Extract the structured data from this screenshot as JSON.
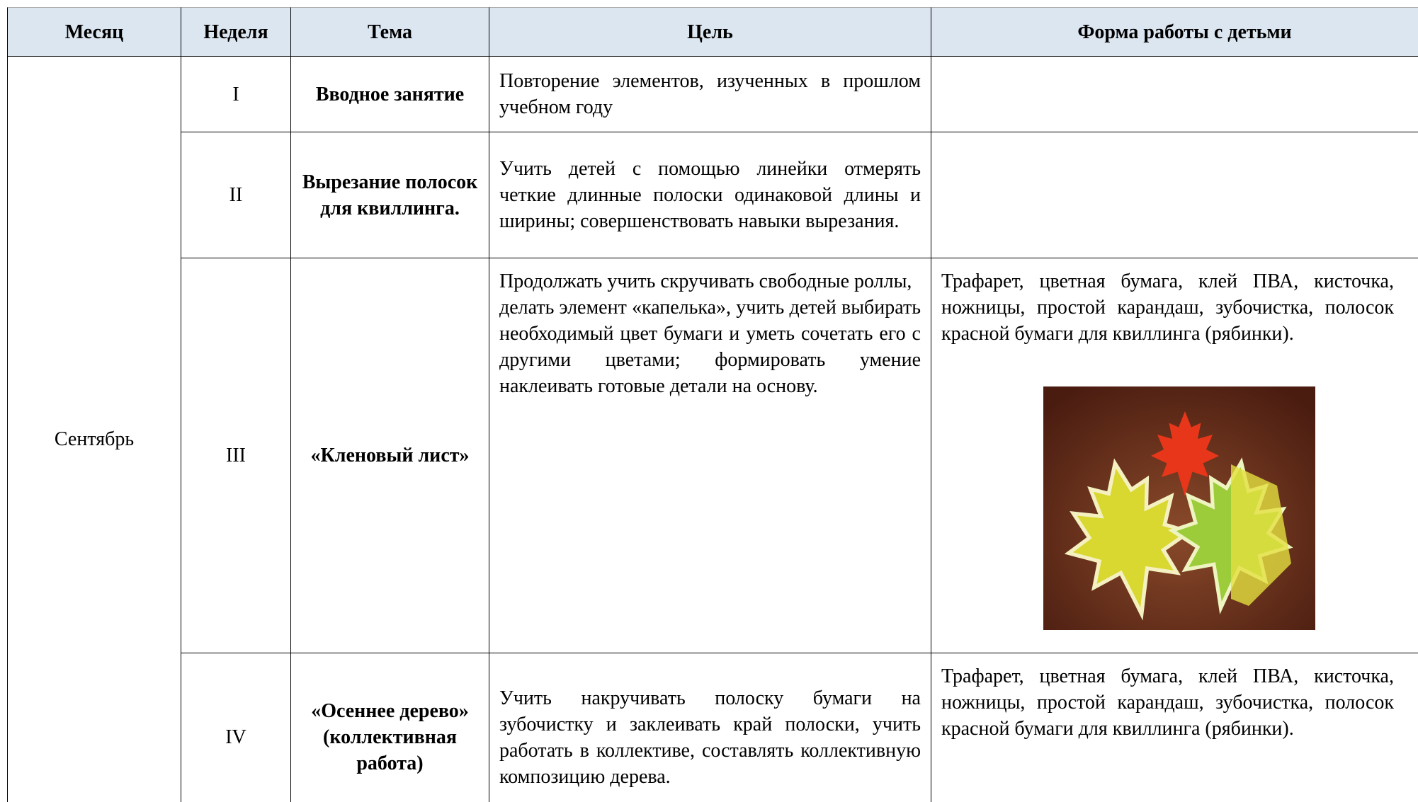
{
  "table": {
    "header": [
      "Месяц",
      "Неделя",
      "Тема",
      "Цель",
      "Форма работы с детьми"
    ],
    "month": "Сентябрь",
    "rows": [
      {
        "week": "I",
        "topic": "Вводное занятие",
        "goal": [
          "Повторение элементов, изученных в прошлом учебном году"
        ],
        "form": null
      },
      {
        "week": "II",
        "topic": "Вырезание полосок для квиллинга.",
        "goal": [
          "Учить детей с помощью линейки отмерять четкие длинные полоски одинаковой длины и ширины; совершенствовать навыки вырезания."
        ],
        "form": null
      },
      {
        "week": "III",
        "topic": "«Кленовый лист»",
        "goal": [
          "Продолжать учить скручивать свободные роллы,",
          "делать элемент «капелька», учить детей выбирать необходимый цвет бумаги и уметь сочетать его с другими цветами; формировать умение наклеивать готовые детали на основу."
        ],
        "form": "Трафарет, цветная бумага, клей ПВА, кисточка, ножницы, простой карандаш, зубочистка, полосок красной бумаги для квиллинга (рябинки)."
      },
      {
        "week": "IV",
        "topic": "«Осеннее дерево» (коллективная работа)",
        "goal": [
          "Учить накручивать полоску бумаги на зубочистку и заклеивать край полоски, учить работать в коллективе, составлять коллективную композицию дерева."
        ],
        "form": "Трафарет, цветная бумага, клей ПВА, кисточка, ножницы, простой карандаш, зубочистка, полосок красной бумаги для квиллинга (рябинки)."
      }
    ]
  }
}
